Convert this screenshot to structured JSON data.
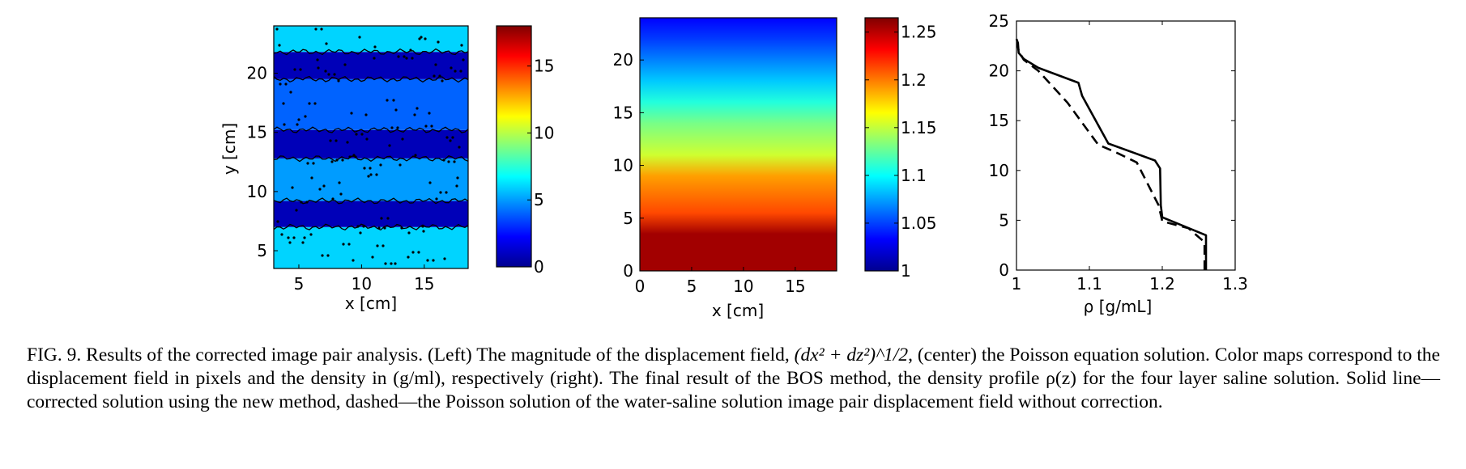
{
  "chart_data": [
    {
      "type": "heatmap",
      "title": "",
      "xlabel": "x [cm]",
      "ylabel": "y [cm]",
      "xlim": [
        3,
        18.5
      ],
      "ylim": [
        3.5,
        24
      ],
      "xticks": [
        5,
        10,
        15
      ],
      "yticks": [
        5,
        10,
        15,
        20
      ],
      "colorbar": {
        "min": 0,
        "max": 18,
        "ticks": [
          0,
          5,
          10,
          15
        ]
      },
      "bands": [
        {
          "y0": 3.5,
          "y1": 7,
          "value": 6
        },
        {
          "y0": 7,
          "y1": 9.2,
          "value": 1
        },
        {
          "y0": 9.2,
          "y1": 12.8,
          "value": 5
        },
        {
          "y0": 12.8,
          "y1": 15.2,
          "value": 1
        },
        {
          "y0": 15.2,
          "y1": 19.5,
          "value": 4
        },
        {
          "y0": 19.5,
          "y1": 21.8,
          "value": 1
        },
        {
          "y0": 21.8,
          "y1": 24,
          "value": 6
        }
      ]
    },
    {
      "type": "heatmap",
      "title": "",
      "xlabel": "x [cm]",
      "ylabel": "",
      "xlim": [
        0,
        19
      ],
      "ylim": [
        0,
        24
      ],
      "xticks": [
        0,
        5,
        10,
        15
      ],
      "yticks": [
        0,
        5,
        10,
        15,
        20
      ],
      "colorbar": {
        "min": 1.0,
        "max": 1.265,
        "ticks": [
          1,
          1.05,
          1.1,
          1.15,
          1.2,
          1.25
        ],
        "tick_labels": [
          "1",
          "1.05",
          "1.1",
          "1.15",
          "1.2",
          "1.25"
        ]
      },
      "profile": {
        "z": [
          0,
          3.5,
          5.5,
          9,
          11,
          14,
          16,
          18,
          20,
          22,
          24
        ],
        "rho": [
          1.262,
          1.262,
          1.24,
          1.21,
          1.16,
          1.13,
          1.1,
          1.07,
          1.045,
          1.02,
          1.0
        ]
      }
    },
    {
      "type": "line",
      "title": "",
      "xlabel": "ρ   [g/mL]",
      "ylabel": "",
      "xlim": [
        1,
        1.3
      ],
      "ylim": [
        0,
        25
      ],
      "xticks": [
        1,
        1.1,
        1.2,
        1.3
      ],
      "yticks": [
        0,
        5,
        10,
        15,
        20,
        25
      ],
      "series": [
        {
          "style": "solid",
          "points": [
            [
              1.26,
              0
            ],
            [
              1.26,
              3.5
            ],
            [
              1.2,
              5.3
            ],
            [
              1.198,
              6.5
            ],
            [
              1.197,
              10.2
            ],
            [
              1.19,
              11
            ],
            [
              1.126,
              12.7
            ],
            [
              1.09,
              17.5
            ],
            [
              1.085,
              18.8
            ],
            [
              1.03,
              20.3
            ],
            [
              1.01,
              21.2
            ],
            [
              1.003,
              21.8
            ],
            [
              1.002,
              22.8
            ],
            [
              1.0,
              23.2
            ]
          ]
        },
        {
          "style": "dashed",
          "points": [
            [
              1.258,
              0
            ],
            [
              1.258,
              2.8
            ],
            [
              1.236,
              4.2
            ],
            [
              1.2,
              4.9
            ],
            [
              1.195,
              6.5
            ],
            [
              1.165,
              10.8
            ],
            [
              1.14,
              11.7
            ],
            [
              1.112,
              12.6
            ],
            [
              1.07,
              16.8
            ],
            [
              1.03,
              20
            ],
            [
              1.01,
              21.1
            ],
            [
              1.003,
              22
            ],
            [
              1.001,
              22.8
            ]
          ]
        }
      ]
    }
  ],
  "ticklabels": {
    "p1x": [
      "5",
      "10",
      "15"
    ],
    "p1y": [
      "5",
      "10",
      "15",
      "20"
    ],
    "cb1": [
      "0",
      "5",
      "10",
      "15"
    ],
    "p2x": [
      "0",
      "5",
      "10",
      "15"
    ],
    "p2y": [
      "0",
      "5",
      "10",
      "15",
      "20"
    ],
    "cb2": [
      "1",
      "1.05",
      "1.1",
      "1.15",
      "1.2",
      "1.25"
    ],
    "p3x": [
      "1",
      "1.1",
      "1.2",
      "1.3"
    ],
    "p3y": [
      "0",
      "5",
      "10",
      "15",
      "20",
      "25"
    ]
  },
  "caption": {
    "prefix": "FIG. 9.  Results of the corrected image pair analysis. (Left) The magnitude of the displacement field, ",
    "formula": "(dx² + dz²)^1/2",
    "rest": ", (center) the Poisson equation solution. Color maps correspond to the displacement field in pixels and the density in (g/ml), respectively (right). The final result of the BOS method, the density profile ρ(z) for the four layer saline solution. Solid line—corrected solution using the new method, dashed—the Poisson solution of the water-saline solution image pair displacement field without correction."
  }
}
